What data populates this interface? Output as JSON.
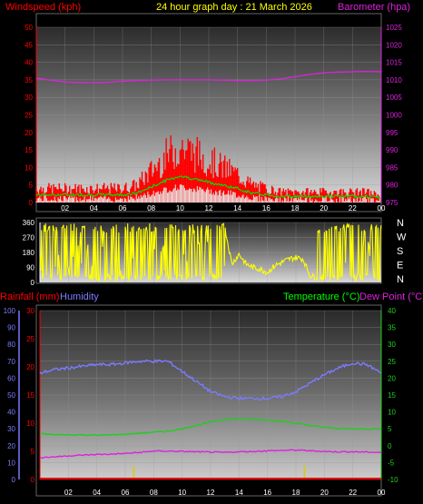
{
  "header": {
    "left": "Windspeed (kph)",
    "center": "24 hour graph day : 21 March 2026",
    "right": "Barometer (hpa)"
  },
  "bottom_header": {
    "rainfall": "Rainfall (mm)",
    "humidity": "Humidity",
    "temperature": "Temperature (°C)",
    "dewpoint": "Dew Point (°C)"
  },
  "compass": [
    "N",
    "W",
    "S",
    "E",
    "N"
  ],
  "colors": {
    "wind": "#ff0000",
    "gust_line": "#00e000",
    "wind_avg": "#e8e8e8",
    "barometer": "#dd22dd",
    "direction": "#ffff00",
    "humidity": "#7b7bff",
    "temperature": "#22cc22",
    "dewpoint": "#dd22dd",
    "rain": "#ddcc00",
    "rain_total": "#ff0000",
    "header_red": "#ff0000",
    "header_yellow": "#ffff00",
    "header_green": "#00ff00"
  },
  "chart_data": [
    {
      "type": "line",
      "name": "wind-barometer",
      "x_ticks": [
        "02",
        "04",
        "06",
        "08",
        "10",
        "12",
        "14",
        "16",
        "18",
        "20",
        "22",
        "00"
      ],
      "x_range": [
        0,
        24
      ],
      "y_left": {
        "label": "Windspeed (kph)",
        "range": [
          0,
          50
        ],
        "ticks": [
          0,
          5,
          10,
          15,
          20,
          25,
          30,
          35,
          40,
          45,
          50
        ]
      },
      "y_right": {
        "label": "Barometer (hpa)",
        "range": [
          975,
          1025
        ],
        "ticks": [
          975,
          980,
          985,
          990,
          995,
          1000,
          1005,
          1010,
          1015,
          1020,
          1025
        ]
      },
      "series": [
        {
          "name": "Windspeed",
          "x": [
            0,
            1,
            2,
            3,
            4,
            5,
            6,
            7,
            8,
            9,
            10,
            11,
            12,
            13,
            14,
            15,
            16,
            17,
            18,
            19,
            20,
            21,
            22,
            23,
            24
          ],
          "values": [
            4,
            4,
            4,
            4,
            4,
            4,
            4,
            5,
            9,
            13,
            16,
            14,
            12,
            10,
            8,
            5,
            4,
            3,
            3,
            3,
            3,
            3,
            3,
            3,
            2
          ]
        },
        {
          "name": "Barometer",
          "x": [
            0,
            1,
            2,
            3,
            4,
            5,
            6,
            7,
            8,
            9,
            10,
            11,
            12,
            13,
            14,
            15,
            16,
            17,
            18,
            19,
            20,
            21,
            22,
            23,
            24
          ],
          "values": [
            1010.5,
            1009.9,
            1009.4,
            1009.2,
            1009.2,
            1009.3,
            1009.6,
            1009.8,
            1009.9,
            1010.0,
            1010.0,
            1010.0,
            1010.0,
            1009.9,
            1009.8,
            1009.8,
            1009.9,
            1010.3,
            1010.9,
            1011.5,
            1012.0,
            1012.2,
            1012.3,
            1012.4,
            1012.3
          ]
        }
      ]
    },
    {
      "type": "line",
      "name": "wind-direction",
      "x_range": [
        0,
        24
      ],
      "y_left": {
        "range": [
          0,
          360
        ],
        "ticks": [
          0,
          90,
          180,
          270,
          360
        ]
      },
      "series": [
        {
          "name": "Direction",
          "x": [
            0,
            0.5,
            1,
            1.5,
            2,
            2.5,
            3,
            3.5,
            4,
            4.5,
            5,
            5.5,
            6,
            6.5,
            7,
            7.5,
            8,
            8.5,
            9,
            9.5,
            10,
            10.5,
            11,
            11.5,
            12,
            12.5,
            13,
            13.5,
            14,
            14.5,
            15,
            15.5,
            16,
            16.5,
            17,
            17.5,
            18,
            18.5,
            19,
            19.5,
            20,
            20.5,
            21,
            21.5,
            22,
            22.5,
            23,
            23.5,
            24
          ],
          "values": [
            20,
            340,
            30,
            320,
            300,
            20,
            340,
            10,
            330,
            60,
            300,
            10,
            340,
            20,
            320,
            50,
            330,
            10,
            300,
            20,
            350,
            40,
            320,
            280,
            300,
            60,
            330,
            110,
            170,
            110,
            90,
            80,
            60,
            100,
            120,
            140,
            150,
            140,
            40,
            30,
            50,
            330,
            20,
            40,
            340,
            60,
            20,
            320,
            330
          ]
        }
      ]
    },
    {
      "type": "line",
      "name": "temperature-humidity",
      "x_ticks": [
        "02",
        "04",
        "06",
        "08",
        "10",
        "12",
        "14",
        "16",
        "18",
        "20",
        "22",
        "00"
      ],
      "x_range": [
        0,
        24
      ],
      "y_humidity": {
        "label": "Humidity",
        "range": [
          0,
          100
        ],
        "ticks": [
          0,
          10,
          20,
          30,
          40,
          50,
          60,
          70,
          80,
          90,
          100
        ]
      },
      "y_rain": {
        "label": "Rainfall (mm)",
        "range": [
          0,
          30
        ],
        "ticks": [
          0,
          5,
          10,
          15,
          20,
          25,
          30
        ]
      },
      "y_temp": {
        "label": "Temperature (°C)",
        "range": [
          -10,
          40
        ],
        "ticks": [
          -10,
          -5,
          0,
          5,
          10,
          15,
          20,
          25,
          30,
          35,
          40
        ]
      },
      "series": [
        {
          "name": "Humidity",
          "x": [
            0,
            1,
            2,
            3,
            4,
            5,
            6,
            7,
            8,
            9,
            10,
            11,
            12,
            13,
            14,
            15,
            16,
            17,
            18,
            19,
            20,
            21,
            22,
            23,
            24
          ],
          "values": [
            63,
            65,
            66,
            67,
            68,
            68,
            69,
            70,
            70,
            70,
            64,
            58,
            52,
            49,
            48,
            48,
            48,
            49,
            52,
            57,
            62,
            66,
            69,
            68,
            63
          ]
        },
        {
          "name": "Temperature",
          "x": [
            0,
            1,
            2,
            3,
            4,
            5,
            6,
            7,
            8,
            9,
            10,
            11,
            12,
            13,
            14,
            15,
            16,
            17,
            18,
            19,
            20,
            21,
            22,
            23,
            24
          ],
          "values": [
            3.5,
            3.3,
            3.2,
            3.2,
            3.1,
            3.2,
            3.4,
            3.7,
            4.0,
            4.3,
            5.0,
            6.0,
            7.0,
            7.8,
            8.0,
            7.8,
            7.6,
            7.2,
            6.6,
            6.0,
            5.4,
            5.1,
            5.0,
            5.0,
            5.0
          ]
        },
        {
          "name": "Dew Point",
          "x": [
            0,
            1,
            2,
            3,
            4,
            5,
            6,
            7,
            8,
            9,
            10,
            11,
            12,
            13,
            14,
            15,
            16,
            17,
            18,
            19,
            20,
            21,
            22,
            23,
            24
          ],
          "values": [
            -3.5,
            -3.3,
            -3.0,
            -2.8,
            -2.6,
            -2.5,
            -2.3,
            -2.0,
            -1.6,
            -1.6,
            -1.7,
            -1.8,
            -1.9,
            -2.0,
            -1.8,
            -1.7,
            -1.5,
            -1.4,
            -1.3,
            -1.5,
            -1.7,
            -1.8,
            -1.8,
            -1.9,
            -2.0
          ]
        },
        {
          "name": "Rainfall",
          "x": [
            6.6,
            18.6
          ],
          "values": [
            2.5,
            2.5
          ]
        }
      ]
    }
  ]
}
